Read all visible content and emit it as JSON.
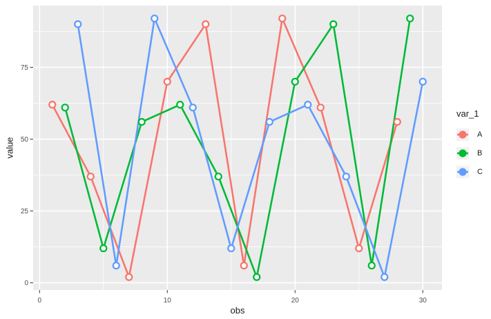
{
  "chart_data": {
    "type": "line",
    "title": "",
    "xlabel": "obs",
    "ylabel": "value",
    "legend_title": "var_1",
    "legend_position": "right",
    "grid": true,
    "marker": "open-circle",
    "panel_background": "#EBEBEB",
    "grid_major_color": "#FFFFFF",
    "grid_minor_color": "#FFFFFF",
    "tick_label_color": "#4D4D4D",
    "tick_mark_color": "#333333",
    "legend_key_background": "#F2F2F2",
    "xlim": [
      -0.5,
      31.5
    ],
    "ylim": [
      -2.5,
      96.5
    ],
    "x_ticks": [
      0,
      10,
      20,
      30
    ],
    "y_ticks": [
      0,
      25,
      50,
      75
    ],
    "x_minor_ticks": [
      5,
      15,
      25
    ],
    "y_minor_ticks": [
      12.5,
      37.5,
      62.5,
      87.5
    ],
    "series": [
      {
        "name": "A",
        "color": "#F8766D",
        "x": [
          1,
          4,
          7,
          10,
          13,
          16,
          19,
          22,
          25,
          28
        ],
        "y": [
          62,
          37,
          2,
          70,
          90,
          6,
          92,
          61,
          12,
          56
        ]
      },
      {
        "name": "B",
        "color": "#00BA38",
        "x": [
          2,
          5,
          8,
          11,
          14,
          17,
          20,
          23,
          26,
          29
        ],
        "y": [
          61,
          12,
          56,
          62,
          37,
          2,
          70,
          90,
          6,
          92
        ]
      },
      {
        "name": "C",
        "color": "#619CFF",
        "x": [
          3,
          6,
          9,
          12,
          15,
          18,
          21,
          24,
          27,
          30
        ],
        "y": [
          90,
          6,
          92,
          61,
          12,
          56,
          62,
          37,
          2,
          70
        ]
      }
    ]
  }
}
